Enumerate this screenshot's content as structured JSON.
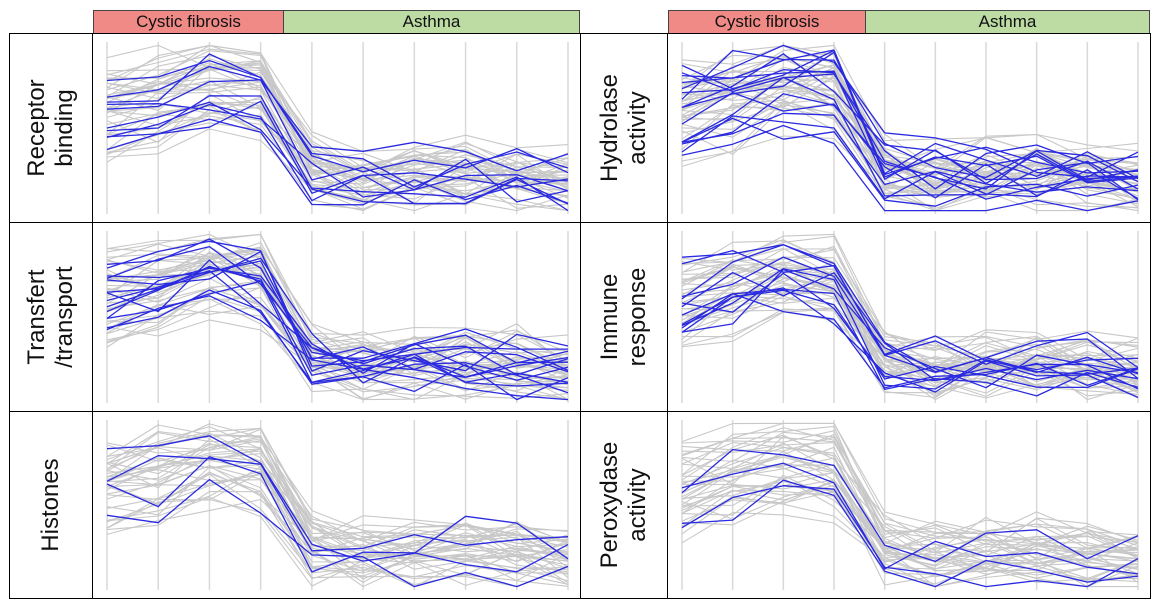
{
  "header": {
    "left": {
      "group1": "Cystic fibrosis",
      "group2": "Asthma"
    },
    "right": {
      "group1": "Cystic fibrosis",
      "group2": "Asthma"
    }
  },
  "colors": {
    "cf_header": "#f08a86",
    "asthma_header": "#bcdca4",
    "background_lines": "#c8c8c8",
    "highlight_lines": "#2a2ae0",
    "gridlines": "#d9d9d9"
  },
  "chart_data": [
    {
      "type": "line",
      "title": "Receptor\nbinding",
      "categories": 10,
      "grid": "vertical",
      "series_profile": "high-then-low",
      "highlighted_count": 10,
      "background_count": 40,
      "ylim": [
        0,
        1
      ]
    },
    {
      "type": "line",
      "title": "Hydrolase\nactivity",
      "categories": 10,
      "grid": "vertical",
      "series_profile": "high-then-low",
      "highlighted_count": 16,
      "background_count": 40,
      "ylim": [
        0,
        1
      ]
    },
    {
      "type": "line",
      "title": "Transfert\n/transport",
      "categories": 10,
      "grid": "vertical",
      "series_profile": "high-then-low",
      "highlighted_count": 14,
      "background_count": 40,
      "ylim": [
        0,
        1
      ]
    },
    {
      "type": "line",
      "title": "Immune\nresponse",
      "categories": 10,
      "grid": "vertical",
      "series_profile": "high-then-low",
      "highlighted_count": 12,
      "background_count": 40,
      "ylim": [
        0,
        1
      ]
    },
    {
      "type": "line",
      "title": "Histones",
      "categories": 10,
      "grid": "vertical",
      "series_profile": "high-then-low",
      "highlighted_count": 4,
      "background_count": 40,
      "ylim": [
        0,
        1
      ]
    },
    {
      "type": "line",
      "title": "Peroxydase\nactivity",
      "categories": 10,
      "grid": "vertical",
      "series_profile": "high-then-low",
      "highlighted_count": 4,
      "background_count": 40,
      "ylim": [
        0,
        1
      ]
    }
  ]
}
